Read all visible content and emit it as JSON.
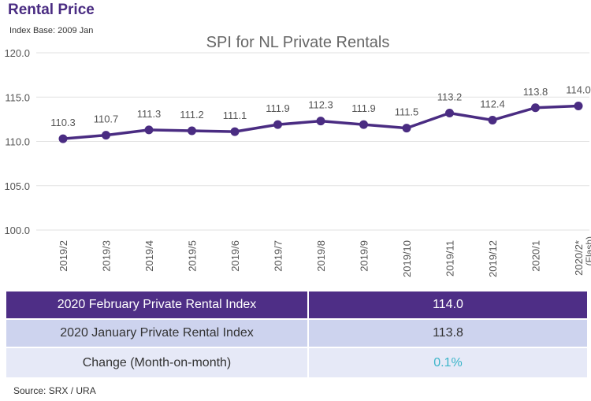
{
  "header": {
    "title": "Rental Price",
    "subtitle": "Index Base: 2009 Jan",
    "corner_mark": "\""
  },
  "chart_data": {
    "type": "line",
    "title": "SPI for NL Private Rentals",
    "xlabel": "",
    "ylabel": "",
    "categories": [
      "2019/2",
      "2019/3",
      "2019/4",
      "2019/5",
      "2019/6",
      "2019/7",
      "2019/8",
      "2019/9",
      "2019/10",
      "2019/11",
      "2019/12",
      "2020/1",
      "2020/2*"
    ],
    "category_notes": [
      "",
      "",
      "",
      "",
      "",
      "",
      "",
      "",
      "",
      "",
      "",
      "",
      "(Flash)"
    ],
    "series": [
      {
        "values": [
          110.3,
          110.7,
          111.3,
          111.2,
          111.1,
          111.9,
          112.3,
          111.9,
          111.5,
          113.2,
          112.4,
          113.8,
          114.0
        ]
      }
    ],
    "data_labels": [
      "110.3",
      "110.7",
      "111.3",
      "111.2",
      "111.1",
      "111.9",
      "112.3",
      "111.9",
      "111.5",
      "113.2",
      "112.4",
      "113.8",
      "114.0"
    ],
    "yticks": [
      "100.0",
      "105.0",
      "110.0",
      "115.0",
      "120.0"
    ],
    "ylim": [
      100,
      120
    ],
    "grid": true,
    "legend": "none",
    "line_color": "#4a2c82",
    "grid_color": "#e2e2e2"
  },
  "table": {
    "rows": [
      {
        "label": "2020 February Private Rental Index",
        "value": "114.0"
      },
      {
        "label": "2020 January Private Rental Index",
        "value": "113.8"
      },
      {
        "label": "Change (Month-on-month)",
        "value": "0.1%"
      }
    ],
    "colors": {
      "header": "#4e2e86",
      "row2": "#cdd3ee",
      "row3": "#e6e9f7",
      "change": "#3cb5c9"
    }
  },
  "source": "Source: SRX / URA"
}
